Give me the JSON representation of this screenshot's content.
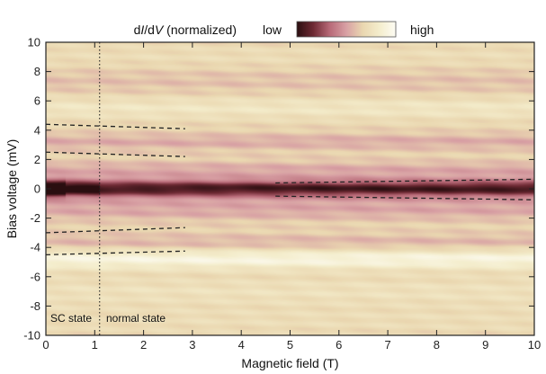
{
  "chart_data": {
    "type": "heatmap",
    "title": "",
    "colorbar": {
      "label_prefix": "d",
      "label_I": "I",
      "label_mid": "/d",
      "label_V": "V",
      "label_suffix": " (normalized)",
      "low_label": "low",
      "high_label": "high",
      "colors": [
        "#2a0e10",
        "#6e2a34",
        "#b86a78",
        "#d8a0a4",
        "#ead7b0",
        "#f4edcc",
        "#fdfcf4"
      ]
    },
    "xlabel": "Magnetic field (T)",
    "ylabel": "Bias voltage (mV)",
    "xlim": [
      0,
      10
    ],
    "ylim": [
      -10,
      10
    ],
    "x_ticks": [
      0,
      1,
      2,
      3,
      4,
      5,
      6,
      7,
      8,
      9,
      10
    ],
    "y_ticks": [
      -10,
      -8,
      -6,
      -4,
      -2,
      0,
      2,
      4,
      6,
      8,
      10
    ],
    "x_tick_labels": [
      "0",
      "1",
      "2",
      "3",
      "4",
      "5",
      "6",
      "7",
      "8",
      "9",
      "10"
    ],
    "y_tick_labels": [
      "-10",
      "-8",
      "-6",
      "-4",
      "-2",
      "0",
      "2",
      "4",
      "6",
      "8",
      "10"
    ],
    "phase_boundary_field": 1.1,
    "phase_labels": {
      "left": "SC state",
      "right": "normal state"
    },
    "guide_lines": [
      {
        "x": [
          0,
          2.85
        ],
        "y": [
          4.4,
          4.1
        ]
      },
      {
        "x": [
          0,
          2.85
        ],
        "y": [
          2.5,
          2.2
        ]
      },
      {
        "x": [
          0,
          2.85
        ],
        "y": [
          -3.0,
          -2.65
        ]
      },
      {
        "x": [
          0,
          2.85
        ],
        "y": [
          -4.5,
          -4.25
        ]
      },
      {
        "x": [
          4.7,
          10
        ],
        "y": [
          0.4,
          0.65
        ]
      },
      {
        "x": [
          4.7,
          10
        ],
        "y": [
          -0.5,
          -0.75
        ]
      }
    ],
    "bands": [
      {
        "v": 0.0,
        "w": 0.45,
        "amp": -0.55,
        "note": "zero-bias depression, strongest near 0 T"
      },
      {
        "v": 0.0,
        "w": 1.1,
        "amp": -0.25
      },
      {
        "v": 3.2,
        "w": 0.55,
        "amp": -0.12
      },
      {
        "v": 1.4,
        "w": 0.5,
        "amp": -0.08
      },
      {
        "v": -1.6,
        "w": 0.6,
        "amp": -0.1
      },
      {
        "v": -3.7,
        "w": 0.6,
        "amp": -0.1
      },
      {
        "v": -4.8,
        "w": 0.7,
        "amp": 0.25,
        "note": "bright band (high)"
      },
      {
        "v": 5.5,
        "w": 0.8,
        "amp": 0.12
      },
      {
        "v": 7.4,
        "w": 1.0,
        "amp": -0.06
      },
      {
        "v": -7.0,
        "w": 1.0,
        "amp": 0.08
      },
      {
        "v": 9.0,
        "w": 1.0,
        "amp": 0.05
      },
      {
        "v": -9.0,
        "w": 1.0,
        "amp": 0.05
      }
    ]
  }
}
